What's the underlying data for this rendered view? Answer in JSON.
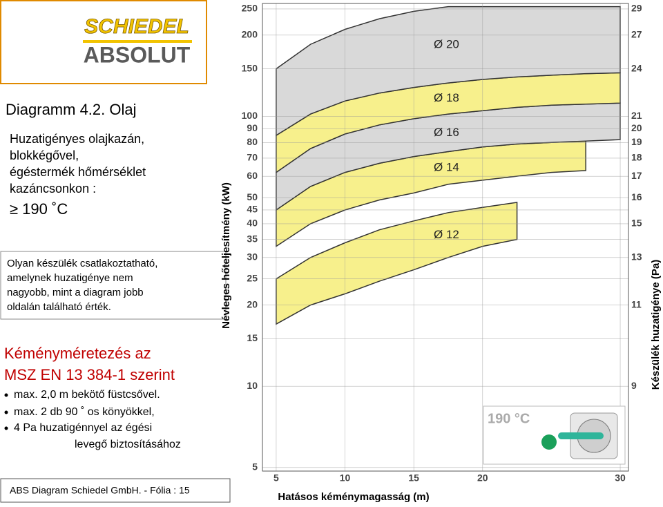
{
  "logo": {
    "brand": "SCHIEDEL",
    "product": "ABSOLUT"
  },
  "left": {
    "title": "Diagramm 4.2. Olaj",
    "lines": [
      "Huzatigényes olajkazán,",
      "blokkégővel,",
      "égéstermék hőmérséklet",
      "kazáncsonkon :"
    ],
    "temperature": "≥ 190 ˚C",
    "note": [
      "Olyan készülék csatlakoztatható,",
      "amelynek huzatigénye nem",
      "nagyobb, mint a diagram jobb",
      "oldalán található érték."
    ],
    "heading": [
      "Kéményméretezés az",
      "MSZ EN 13 384-1 szerint"
    ],
    "bullets": [
      "max. 2,0 m bekötő füstcsővel.",
      "max. 2 db 90 ˚ os könyökkel,",
      "4 Pa huzatigénnyel az égési"
    ],
    "continuation": "levegő biztosításához",
    "footer": "ABS Diagram  Schiedel GmbH. - Fólia : 15"
  },
  "chart_data": {
    "type": "area",
    "xlabel": "Hatásos kéménymagasság (m)",
    "ylabel": "Névleges hőteljesítmény (kW)",
    "y2label": "Készülék huzatigénye (Pa)",
    "inset": "190 °C",
    "log_scale": true,
    "grid": true,
    "x": [
      5,
      7.5,
      10,
      12.5,
      15,
      17.5,
      20,
      22.5,
      25,
      27.5,
      30
    ],
    "xlim": [
      4,
      30.6
    ],
    "xticks": [
      5,
      10,
      15,
      20,
      30
    ],
    "ylim": [
      4.85,
      262
    ],
    "yticks": [
      5,
      10,
      15,
      20,
      25,
      30,
      35,
      40,
      45,
      50,
      60,
      70,
      80,
      90,
      100,
      150,
      200,
      250
    ],
    "y2ticks": [
      9,
      11,
      13,
      15,
      16,
      17,
      18,
      19,
      20,
      21,
      24,
      27,
      29
    ],
    "y2ticks_kw": [
      10,
      20,
      30,
      40,
      50,
      60,
      70,
      80,
      90,
      100,
      150,
      200,
      250
    ],
    "series": [
      {
        "name": "Ø 12",
        "color": "#f7f08c",
        "lower": [
          17,
          20,
          22,
          24.5,
          27,
          30,
          33,
          35,
          null,
          null,
          null
        ],
        "upper": [
          25,
          30,
          34,
          38,
          41,
          44,
          46,
          48,
          null,
          null,
          null
        ]
      },
      {
        "name": "Ø 14",
        "color": "#f7f08c",
        "lower": [
          33,
          40,
          45,
          49,
          52,
          56,
          58,
          60,
          62,
          63,
          null
        ],
        "upper": [
          45,
          55,
          62,
          67,
          71,
          74,
          77,
          79,
          80,
          81,
          null
        ]
      },
      {
        "name": "Ø 16",
        "color": "#d9d9d9",
        "lower": [
          45,
          55,
          62,
          67,
          71,
          74,
          77,
          79,
          80,
          81,
          82
        ],
        "upper": [
          62,
          76,
          86,
          93,
          98,
          102,
          105,
          108,
          110,
          111,
          112
        ]
      },
      {
        "name": "Ø 18",
        "color": "#f7f08c",
        "lower": [
          62,
          76,
          86,
          93,
          98,
          102,
          105,
          108,
          110,
          111,
          112
        ],
        "upper": [
          85,
          102,
          114,
          122,
          128,
          133,
          137,
          140,
          142,
          144,
          145
        ]
      },
      {
        "name": "Ø 20",
        "color": "#d9d9d9",
        "lower": [
          85,
          102,
          114,
          122,
          128,
          133,
          137,
          140,
          142,
          144,
          145
        ],
        "upper": [
          150,
          185,
          210,
          230,
          245,
          255,
          255,
          255,
          255,
          255,
          255
        ]
      }
    ]
  }
}
